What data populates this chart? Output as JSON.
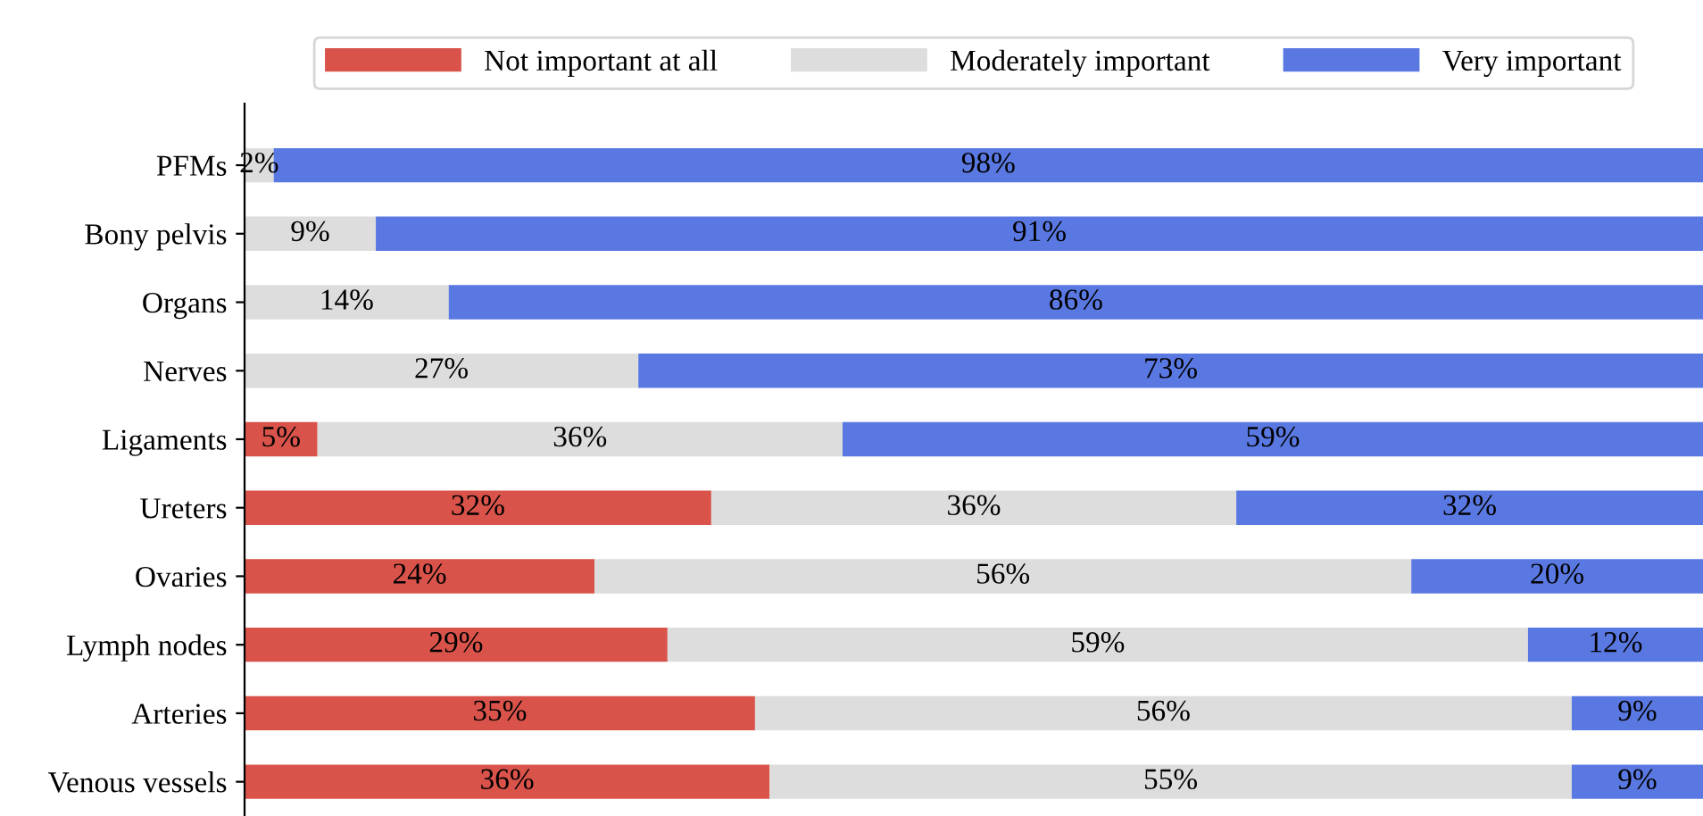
{
  "chart_data": {
    "type": "bar",
    "orientation": "horizontal",
    "stacked": true,
    "xlim": [
      0,
      100
    ],
    "tick_labels": "y",
    "grid": false,
    "legend": "top",
    "categories": [
      "PFMs",
      "Bony pelvis",
      "Organs",
      "Nerves",
      "Ligaments",
      "Ureters",
      "Ovaries",
      "Lymph nodes",
      "Arteries",
      "Venous vessels"
    ],
    "series": [
      {
        "name": "Not important at all",
        "color": "#d9534a",
        "values": [
          0,
          0,
          0,
          0,
          5,
          32,
          24,
          29,
          35,
          36
        ],
        "value_labels": [
          null,
          null,
          null,
          null,
          "5%",
          "32%",
          "24%",
          "29%",
          "35%",
          "36%"
        ]
      },
      {
        "name": "Moderately important",
        "color": "#dcdddc",
        "values": [
          2,
          9,
          14,
          27,
          36,
          36,
          56,
          59,
          56,
          55
        ],
        "value_labels": [
          "2%",
          "9%",
          "14%",
          "27%",
          "36%",
          "36%",
          "56%",
          "59%",
          "56%",
          "55%"
        ]
      },
      {
        "name": "Very important",
        "color": "#5a78e2",
        "values": [
          98,
          91,
          86,
          73,
          59,
          32,
          20,
          12,
          9,
          9
        ],
        "value_labels": [
          "98%",
          "91%",
          "86%",
          "73%",
          "59%",
          "32%",
          "20%",
          "12%",
          "9%",
          "9%"
        ]
      }
    ]
  }
}
